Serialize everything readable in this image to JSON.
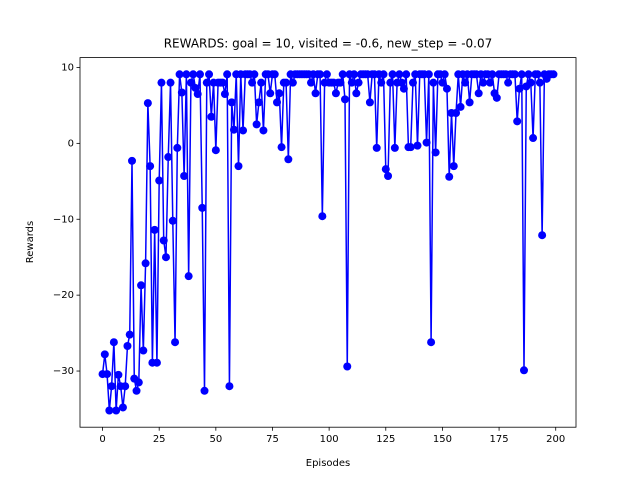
{
  "chart_data": {
    "type": "line",
    "title": "REWARDS: goal = 10, visited = -0.6, new_step = -0.07",
    "x_label": "Episodes",
    "y_label": "Rewards",
    "x": [
      0,
      1,
      2,
      3,
      4,
      5,
      6,
      7,
      8,
      9,
      10,
      11,
      12,
      13,
      14,
      15,
      16,
      17,
      18,
      19,
      20,
      21,
      22,
      23,
      24,
      25,
      26,
      27,
      28,
      29,
      30,
      31,
      32,
      33,
      34,
      35,
      36,
      37,
      38,
      39,
      40,
      41,
      42,
      43,
      44,
      45,
      46,
      47,
      48,
      49,
      50,
      51,
      52,
      53,
      54,
      55,
      56,
      57,
      58,
      59,
      60,
      61,
      62,
      63,
      64,
      65,
      66,
      67,
      68,
      69,
      70,
      71,
      72,
      73,
      74,
      75,
      76,
      77,
      78,
      79,
      80,
      81,
      82,
      83,
      84,
      85,
      86,
      87,
      88,
      89,
      90,
      91,
      92,
      93,
      94,
      95,
      96,
      97,
      98,
      99,
      100,
      101,
      102,
      103,
      104,
      105,
      106,
      107,
      108,
      109,
      110,
      111,
      112,
      113,
      114,
      115,
      116,
      117,
      118,
      119,
      120,
      121,
      122,
      123,
      124,
      125,
      126,
      127,
      128,
      129,
      130,
      131,
      132,
      133,
      134,
      135,
      136,
      137,
      138,
      139,
      140,
      141,
      142,
      143,
      144,
      145,
      146,
      147,
      148,
      149,
      150,
      151,
      152,
      153,
      154,
      155,
      156,
      157,
      158,
      159,
      160,
      161,
      162,
      163,
      164,
      165,
      166,
      167,
      168,
      169,
      170,
      171,
      172,
      173,
      174,
      175,
      176,
      177,
      178,
      179,
      180,
      181,
      182,
      183,
      184,
      185,
      186,
      187,
      188,
      189,
      190,
      191,
      192,
      193,
      194,
      195,
      196,
      197,
      198,
      199
    ],
    "series": [
      {
        "color": "#0000ff",
        "values": [
          -30.4,
          -27.8,
          -30.4,
          -35.2,
          -32,
          -26.2,
          -35.2,
          -30.5,
          -32,
          -34.8,
          -32,
          -26.7,
          -25.2,
          -2.3,
          -31,
          -32.6,
          -31.5,
          -18.7,
          -27.3,
          -15.8,
          5.3,
          -3,
          -28.9,
          -11.4,
          -28.9,
          -4.9,
          8,
          -12.8,
          -15,
          -1.8,
          8,
          -10.2,
          -26.2,
          -0.6,
          9.1,
          6.7,
          -4.3,
          9.1,
          -17.5,
          8,
          9.1,
          7.3,
          6.5,
          9.1,
          -8.5,
          -32.6,
          8,
          9.1,
          3.5,
          8,
          -0.9,
          8,
          8,
          8,
          6.5,
          9.1,
          -32,
          5.4,
          1.8,
          9.1,
          -3,
          9.1,
          1.7,
          9.1,
          9.1,
          9.1,
          8,
          9.1,
          2.5,
          5.4,
          8,
          1.7,
          9.1,
          9.1,
          6.6,
          9.1,
          9.1,
          5.4,
          6.6,
          -0.5,
          8,
          8,
          -2.1,
          9.1,
          8,
          9.1,
          9.1,
          9.1,
          9.1,
          9.1,
          9.1,
          9.1,
          8,
          9.1,
          6.6,
          9.1,
          9.1,
          -9.6,
          8,
          9.1,
          8,
          8,
          8,
          6.6,
          8,
          8,
          9.1,
          5.8,
          -29.4,
          9.1,
          8,
          9.1,
          6.6,
          8,
          9.1,
          9.1,
          9.1,
          9.1,
          5.4,
          9.1,
          9.1,
          -0.6,
          9.1,
          8,
          9.1,
          -3.4,
          -4.3,
          8,
          9.1,
          -0.6,
          8,
          9.1,
          8,
          7.2,
          9.1,
          -0.5,
          -0.5,
          8,
          9.1,
          -0.3,
          9.1,
          9.1,
          9.1,
          0.1,
          9.1,
          -26.2,
          8,
          -1.2,
          9.1,
          9.1,
          8,
          9.1,
          7.2,
          -4.4,
          4,
          -3,
          4,
          9.1,
          4.8,
          9.1,
          8,
          9.1,
          5.4,
          9.1,
          9.1,
          9.1,
          6.6,
          9.1,
          8,
          9.1,
          9.1,
          8,
          9.1,
          6.6,
          6,
          9.1,
          9.1,
          9.1,
          9.1,
          8,
          9.1,
          9.1,
          9.1,
          2.9,
          7.2,
          9.1,
          -29.9,
          7.5,
          9.1,
          8,
          0.7,
          9.1,
          9.1,
          8,
          -12.1,
          9.1,
          8.5,
          9.1,
          9.1,
          9.1
        ]
      }
    ],
    "xlim": [
      -9.95,
      208.95
    ],
    "ylim": [
      -37.4,
      11.3
    ],
    "xticks": [
      0,
      25,
      50,
      75,
      100,
      125,
      150,
      175,
      200
    ],
    "yticks": [
      {
        "value": -30,
        "label": "−30"
      },
      {
        "value": -20,
        "label": "−20"
      },
      {
        "value": -10,
        "label": "−10"
      },
      0,
      10
    ],
    "grid": false
  }
}
